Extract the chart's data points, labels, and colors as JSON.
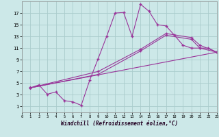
{
  "bg_color": "#cce8e8",
  "grid_color": "#aacccc",
  "line_color": "#993399",
  "xlabel": "Windchill (Refroidissement éolien,°C)",
  "xlim": [
    0,
    23
  ],
  "ylim": [
    0,
    19
  ],
  "xticks": [
    0,
    1,
    2,
    3,
    4,
    5,
    6,
    7,
    8,
    9,
    10,
    11,
    12,
    13,
    14,
    15,
    16,
    17,
    18,
    19,
    20,
    21,
    22,
    23
  ],
  "yticks": [
    1,
    3,
    5,
    7,
    9,
    11,
    13,
    15,
    17
  ],
  "curve1_x": [
    1,
    2,
    3,
    4,
    5,
    6,
    7,
    8,
    9,
    10,
    11,
    12,
    13,
    14,
    15,
    16,
    17,
    18,
    19,
    20,
    21,
    22,
    23
  ],
  "curve1_y": [
    4.2,
    4.7,
    3.1,
    3.5,
    2.0,
    1.8,
    1.2,
    5.5,
    9.2,
    13.0,
    17.0,
    17.1,
    13.0,
    18.5,
    17.3,
    15.0,
    14.8,
    13.2,
    11.5,
    11.0,
    11.0,
    11.0,
    10.3
  ],
  "curve2_x": [
    1,
    23
  ],
  "curve2_y": [
    4.2,
    10.3
  ],
  "curve3_x": [
    1,
    9,
    14,
    17,
    20,
    21,
    23
  ],
  "curve3_y": [
    4.2,
    6.5,
    10.5,
    13.2,
    12.5,
    11.0,
    10.3
  ],
  "curve4_x": [
    1,
    9,
    14,
    17,
    20,
    21,
    23
  ],
  "curve4_y": [
    4.2,
    7.0,
    10.8,
    13.5,
    12.8,
    11.5,
    10.3
  ]
}
